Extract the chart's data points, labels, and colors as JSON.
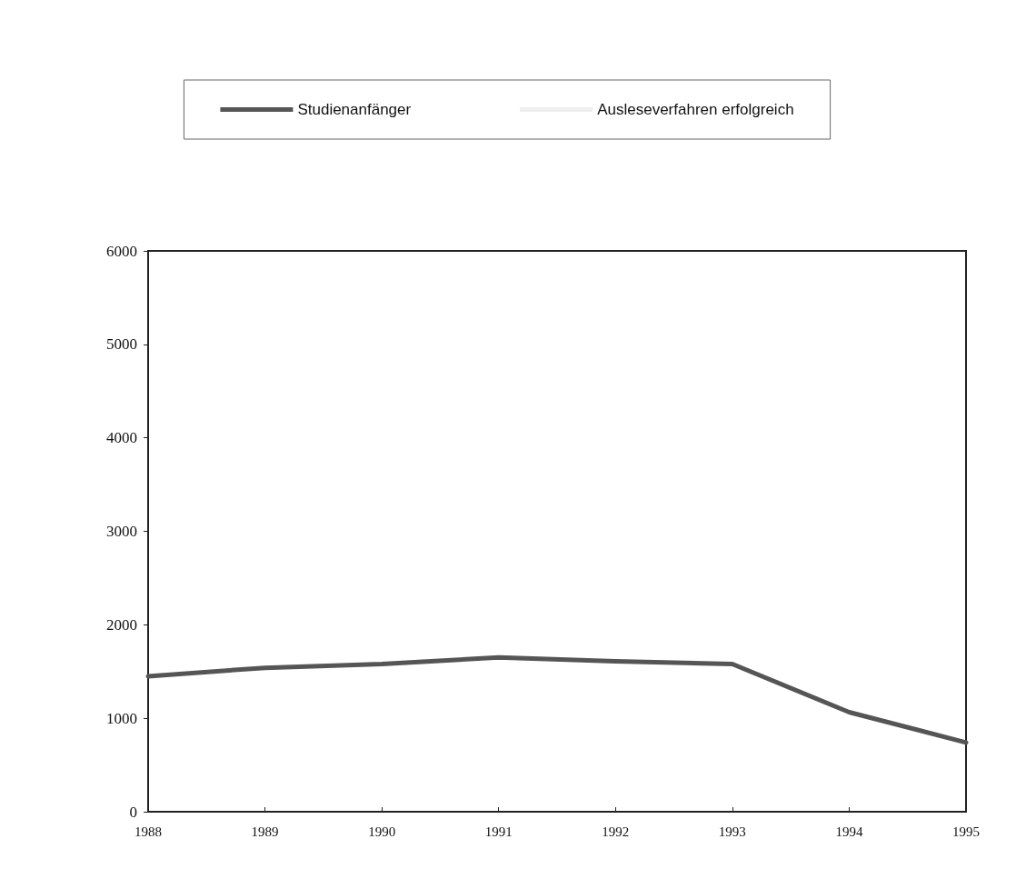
{
  "chart_data": {
    "type": "line",
    "categories": [
      "1988",
      "1989",
      "1990",
      "1991",
      "1992",
      "1993",
      "1994",
      "1995"
    ],
    "series": [
      {
        "name": "Studienanfänger",
        "color": "#555555",
        "values": [
          1450,
          1540,
          1580,
          1650,
          1610,
          1580,
          1065,
          740
        ]
      },
      {
        "name": "Ausleseverfahren erfolgreich",
        "color": "#eeeeee",
        "values": [
          null,
          null,
          null,
          null,
          null,
          null,
          null,
          null
        ]
      }
    ],
    "ylim": [
      0,
      6000
    ],
    "yticks": [
      0,
      1000,
      2000,
      3000,
      4000,
      5000,
      6000
    ],
    "grid": false,
    "legend": "top",
    "marker": "none",
    "line_style": "solid"
  }
}
